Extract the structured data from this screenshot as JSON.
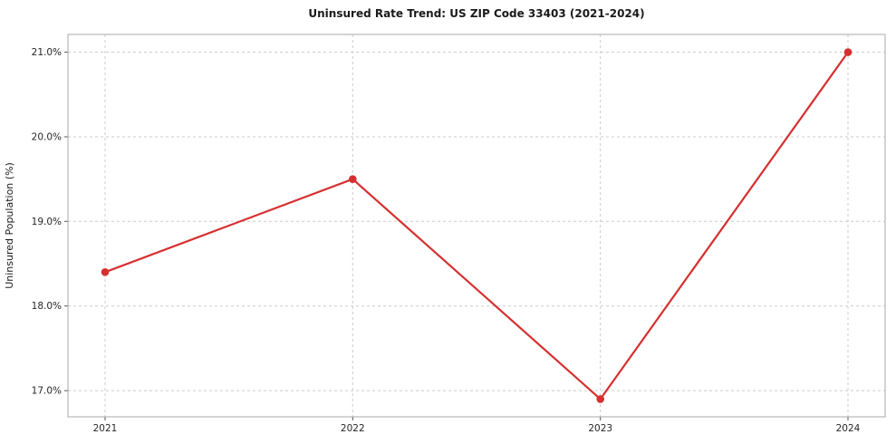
{
  "chart_data": {
    "type": "line",
    "title": "Uninsured Rate Trend: US ZIP Code 33403 (2021-2024)",
    "xlabel": "",
    "ylabel": "Uninsured Population (%)",
    "x": [
      2021,
      2022,
      2023,
      2024
    ],
    "x_tick_labels": [
      "2021",
      "2022",
      "2023",
      "2024"
    ],
    "values": [
      18.4,
      19.5,
      16.9,
      21.0
    ],
    "yticks": [
      17.0,
      18.0,
      19.0,
      20.0,
      21.0
    ],
    "ytick_labels": [
      "17.0%",
      "18.0%",
      "19.0%",
      "20.0%",
      "21.0%"
    ],
    "xlim": [
      2020.85,
      2024.15
    ],
    "ylim": [
      16.69,
      21.21
    ],
    "grid": true,
    "legend": "none",
    "line_color": "#d62f2f",
    "marker": "circle",
    "background": "#ffffff"
  }
}
